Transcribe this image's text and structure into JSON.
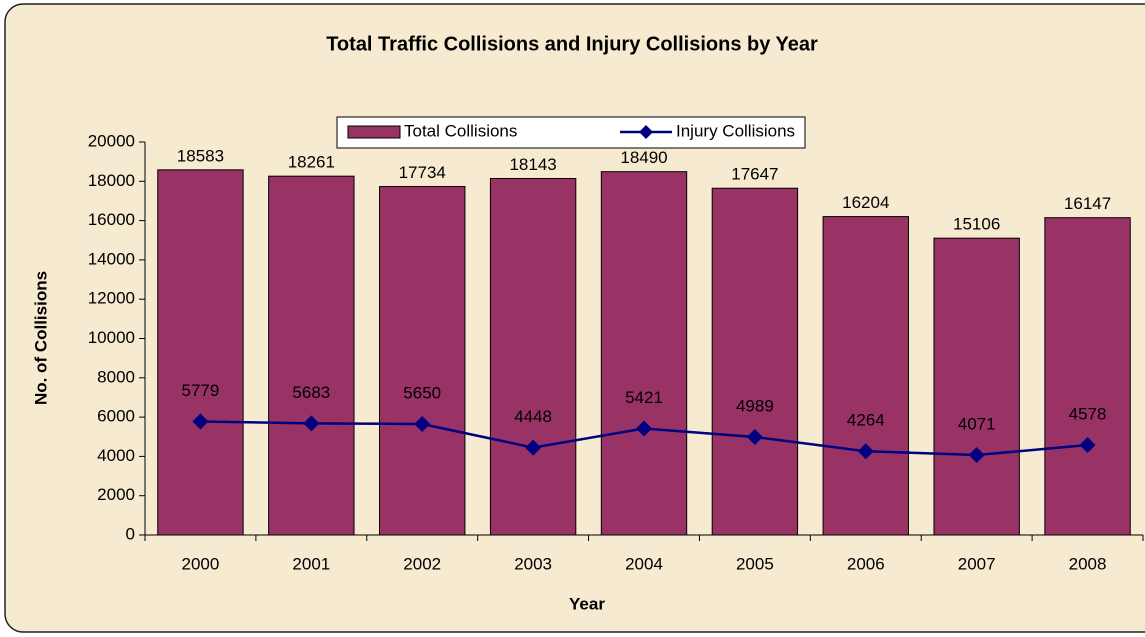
{
  "chart_data": {
    "type": "bar",
    "title": "Total Traffic Collisions and Injury Collisions by Year",
    "x_label": "Year",
    "y_label": "No. of Collisions",
    "categories": [
      "2000",
      "2001",
      "2002",
      "2003",
      "2004",
      "2005",
      "2006",
      "2007",
      "2008"
    ],
    "series": [
      {
        "name": "Total Collisions",
        "type": "bar",
        "color": "#993366",
        "values": [
          18583,
          18261,
          17734,
          18143,
          18490,
          17647,
          16204,
          15106,
          16147
        ]
      },
      {
        "name": "Injury Collisions",
        "type": "line",
        "color": "#000080",
        "values": [
          5779,
          5683,
          5650,
          4448,
          5421,
          4989,
          4264,
          4071,
          4578
        ]
      }
    ],
    "ylim": [
      0,
      20000
    ],
    "yticks": [
      0,
      2000,
      4000,
      6000,
      8000,
      10000,
      12000,
      14000,
      16000,
      18000,
      20000
    ],
    "grid": false,
    "legend": "top"
  }
}
